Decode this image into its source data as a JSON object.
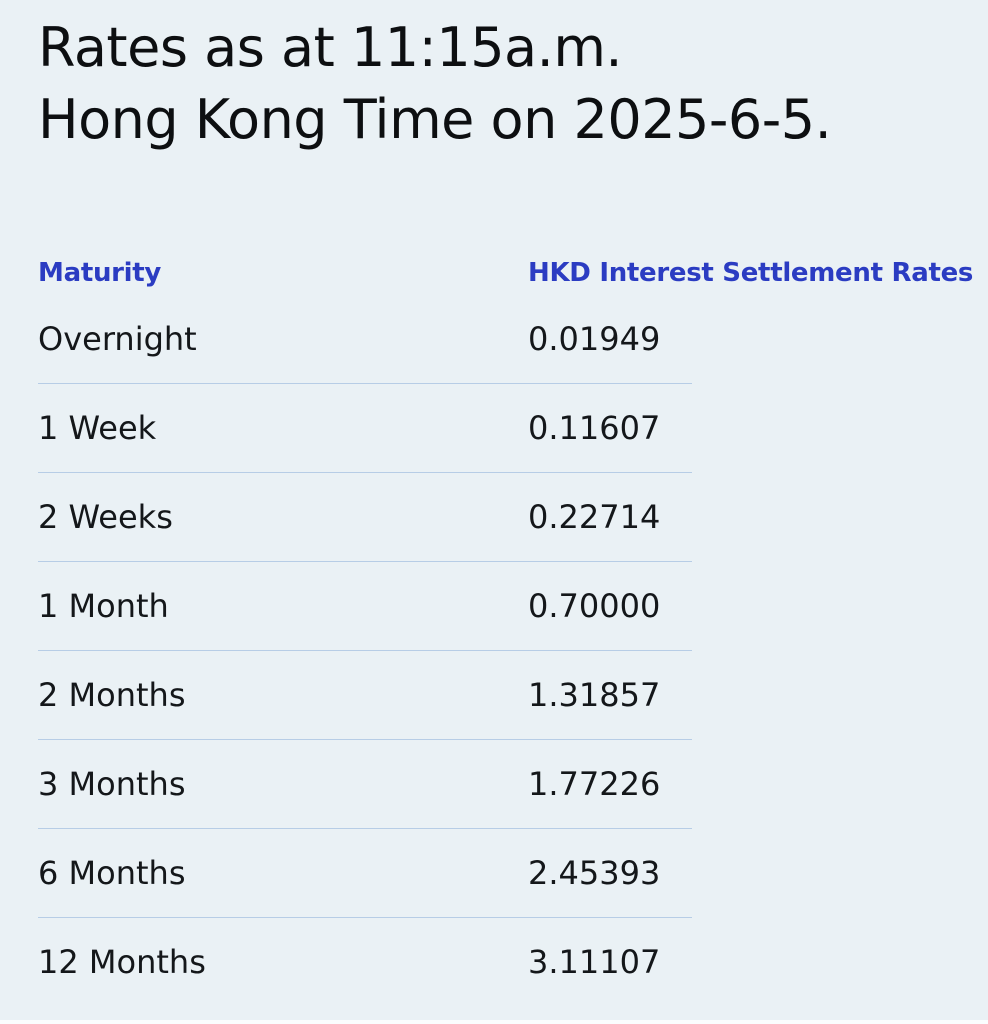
{
  "page": {
    "title_lines": [
      "Rates as at 11:15a.m.",
      "Hong Kong Time on 2025-6-5."
    ]
  },
  "colors": {
    "background": "#eaf1f5",
    "header_blue": "#2b3cc2",
    "divider": "#b7cde6",
    "body_text": "#14171a",
    "title_text": "#0d0f11",
    "bottom_strip": "#fbfdfe"
  },
  "table": {
    "columns": [
      {
        "label": "Maturity"
      },
      {
        "label": "HKD Interest Settlement Rates"
      }
    ],
    "rows": [
      {
        "maturity": "Overnight",
        "rate": "0.01949"
      },
      {
        "maturity": "1 Week",
        "rate": "0.11607"
      },
      {
        "maturity": "2 Weeks",
        "rate": "0.22714"
      },
      {
        "maturity": "1 Month",
        "rate": "0.70000"
      },
      {
        "maturity": "2 Months",
        "rate": "1.31857"
      },
      {
        "maturity": "3 Months",
        "rate": "1.77226"
      },
      {
        "maturity": "6 Months",
        "rate": "2.45393"
      },
      {
        "maturity": "12 Months",
        "rate": "3.11107"
      }
    ]
  }
}
